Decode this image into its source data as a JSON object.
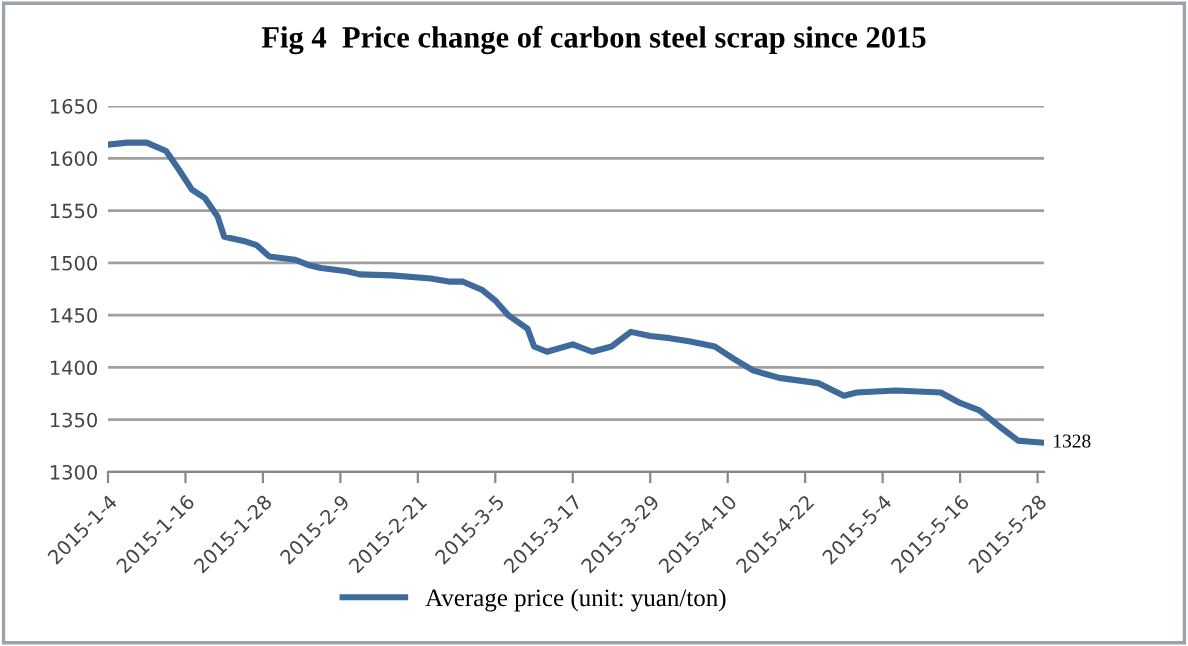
{
  "chart_data": {
    "type": "line",
    "title": "Fig 4  Price change of carbon steel scrap since 2015",
    "x": [
      "2015-01-04",
      "2015-01-07",
      "2015-01-10",
      "2015-01-13",
      "2015-01-15",
      "2015-01-17",
      "2015-01-19",
      "2015-01-21",
      "2015-01-22",
      "2015-01-25",
      "2015-01-27",
      "2015-01-29",
      "2015-02-02",
      "2015-02-04",
      "2015-02-06",
      "2015-02-10",
      "2015-02-12",
      "2015-02-17",
      "2015-02-23",
      "2015-02-26",
      "2015-02-28",
      "2015-03-03",
      "2015-03-05",
      "2015-03-07",
      "2015-03-10",
      "2015-03-11",
      "2015-03-13",
      "2015-03-17",
      "2015-03-20",
      "2015-03-23",
      "2015-03-26",
      "2015-03-29",
      "2015-04-01",
      "2015-04-04",
      "2015-04-08",
      "2015-04-11",
      "2015-04-14",
      "2015-04-18",
      "2015-04-24",
      "2015-04-28",
      "2015-04-30",
      "2015-05-06",
      "2015-05-13",
      "2015-05-16",
      "2015-05-19",
      "2015-05-22",
      "2015-05-25",
      "2015-05-27",
      "2015-05-29"
    ],
    "series": [
      {
        "name": "Average price (unit: yuan/ton)",
        "color": "#3f6a9c",
        "values": [
          1613,
          1615,
          1615,
          1607,
          1589,
          1570,
          1562,
          1544,
          1525,
          1521,
          1517,
          1506,
          1503,
          1498,
          1495,
          1492,
          1489,
          1488,
          1485,
          1482,
          1482,
          1474,
          1464,
          1450,
          1437,
          1420,
          1415,
          1422,
          1415,
          1420,
          1434,
          1430,
          1428,
          1425,
          1420,
          1408,
          1397,
          1390,
          1385,
          1373,
          1376,
          1378,
          1376,
          1366,
          1359,
          1344,
          1330,
          1329,
          1328
        ]
      }
    ],
    "ylim": [
      1300,
      1650
    ],
    "yticks": [
      1300,
      1350,
      1400,
      1450,
      1500,
      1550,
      1600,
      1650
    ],
    "xlim": [
      "2015-01-04",
      "2015-05-29"
    ],
    "xticks": [
      {
        "value": "2015-01-04",
        "label": "2015-1-4"
      },
      {
        "value": "2015-01-16",
        "label": "2015-1-16"
      },
      {
        "value": "2015-01-28",
        "label": "2015-1-28"
      },
      {
        "value": "2015-02-09",
        "label": "2015-2-9"
      },
      {
        "value": "2015-02-21",
        "label": "2015-2-21"
      },
      {
        "value": "2015-03-05",
        "label": "2015-3-5"
      },
      {
        "value": "2015-03-17",
        "label": "2015-3-17"
      },
      {
        "value": "2015-03-29",
        "label": "2015-3-29"
      },
      {
        "value": "2015-04-10",
        "label": "2015-4-10"
      },
      {
        "value": "2015-04-22",
        "label": "2015-4-22"
      },
      {
        "value": "2015-05-04",
        "label": "2015-5-4"
      },
      {
        "value": "2015-05-16",
        "label": "2015-5-16"
      },
      {
        "value": "2015-05-28",
        "label": "2015-5-28"
      }
    ],
    "annotations": [
      {
        "text": "1328",
        "x": "2015-05-29",
        "y": 1328
      }
    ],
    "grid": "y",
    "legend": "bottom",
    "marker": "none",
    "line_style": "solid"
  }
}
